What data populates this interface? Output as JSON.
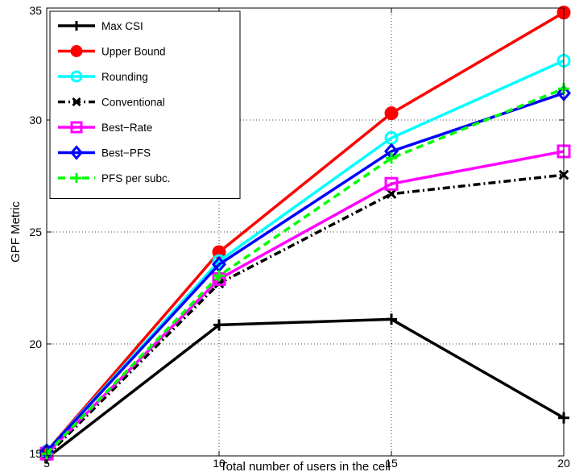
{
  "chart_data": {
    "type": "line",
    "title": "",
    "xlabel": "Total number of users in the cell",
    "ylabel": "GPF Metric",
    "x": [
      5,
      10,
      15,
      20
    ],
    "xlim": [
      5,
      20
    ],
    "ylim": [
      15,
      35
    ],
    "xticks": [
      "5",
      "10",
      "15",
      "20"
    ],
    "yticks": [
      "15",
      "20",
      "25",
      "30",
      "35"
    ],
    "grid": true,
    "legend_position": "top-left",
    "series": [
      {
        "name": "Max CSI",
        "values": [
          14.9,
          20.85,
          21.1,
          16.7
        ],
        "color": "#000000",
        "marker": "plus",
        "dash": "solid",
        "marker_fill": "none"
      },
      {
        "name": "Upper Bound",
        "values": [
          15.2,
          24.1,
          30.3,
          34.8
        ],
        "color": "#ff0000",
        "marker": "circle",
        "dash": "solid",
        "marker_fill": "#ff0000"
      },
      {
        "name": "Rounding",
        "values": [
          15.2,
          23.7,
          29.2,
          32.65
        ],
        "color": "#00ffff",
        "marker": "circle",
        "dash": "solid",
        "marker_fill": "none"
      },
      {
        "name": "Conventional",
        "values": [
          15.0,
          22.7,
          26.7,
          27.55
        ],
        "color": "#000000",
        "marker": "x",
        "dash": "dashdot",
        "marker_fill": "none"
      },
      {
        "name": "Best−Rate",
        "values": [
          15.1,
          22.9,
          27.15,
          28.6
        ],
        "color": "#ff00ff",
        "marker": "square",
        "dash": "solid",
        "marker_fill": "none"
      },
      {
        "name": "Best−PFS",
        "values": [
          15.2,
          23.55,
          28.6,
          31.2
        ],
        "color": "#0000ff",
        "marker": "diamond",
        "dash": "solid",
        "marker_fill": "none"
      },
      {
        "name": "PFS per subc.",
        "values": [
          15.1,
          23.05,
          28.3,
          31.4
        ],
        "color": "#00ff00",
        "marker": "plus",
        "dash": "dashed",
        "marker_fill": "none"
      }
    ]
  }
}
